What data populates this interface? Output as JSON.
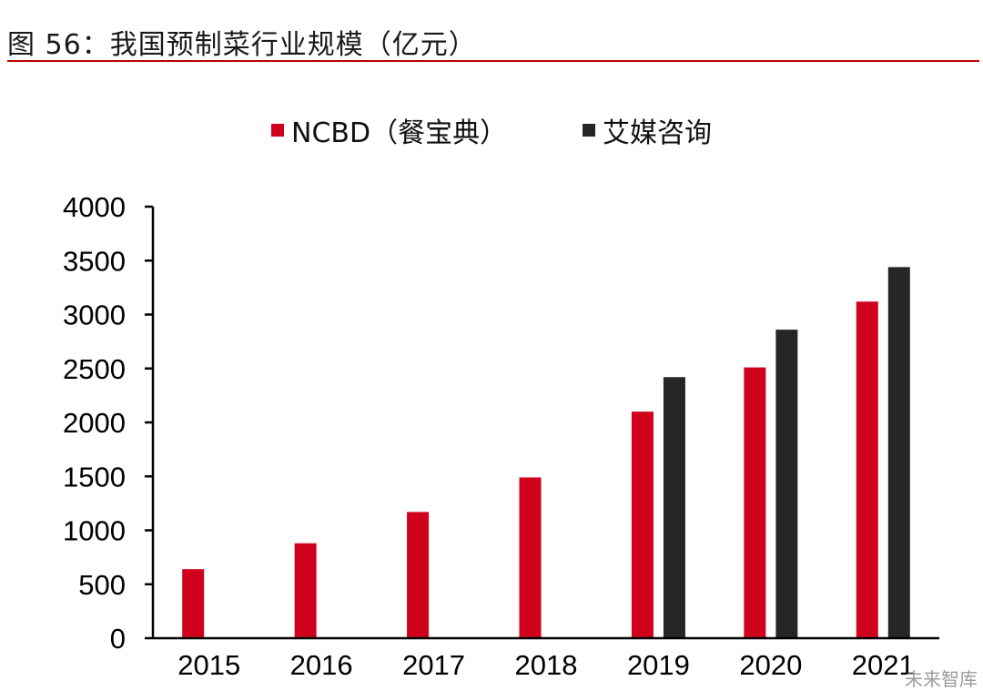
{
  "figure": {
    "title": "图 56：我国预制菜行业规模（亿元）",
    "watermark": "未来智库"
  },
  "colors": {
    "title_rule": "#c00000"
  },
  "chart_data": {
    "type": "bar",
    "categories": [
      "2015",
      "2016",
      "2017",
      "2018",
      "2019",
      "2020",
      "2021"
    ],
    "series": [
      {
        "name": "NCBD（餐宝典）",
        "color": "#d0021b",
        "values": [
          640,
          880,
          1170,
          1490,
          2100,
          2510,
          3120
        ]
      },
      {
        "name": "艾媒咨询",
        "color": "#262626",
        "values": [
          null,
          null,
          null,
          null,
          2420,
          2860,
          3440
        ]
      }
    ],
    "ylim": [
      0,
      4000
    ],
    "yticks": [
      0,
      500,
      1000,
      1500,
      2000,
      2500,
      3000,
      3500,
      4000
    ],
    "grid": false,
    "legend": "top-center"
  }
}
